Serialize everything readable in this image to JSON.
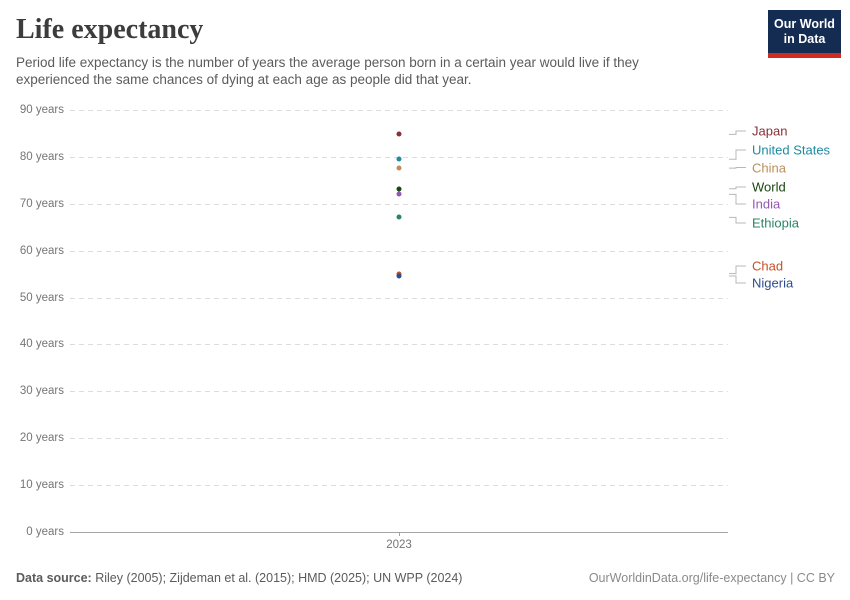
{
  "header": {
    "title": "Life expectancy",
    "subtitle": "Period life expectancy is the number of years the average person born in a certain year would live if they experienced the same chances of dying at each age as people did that year.",
    "logo_line1": "Our World",
    "logo_line2": "in Data",
    "logo_bg_color": "#142B52",
    "logo_stripe_color": "#CF2B21"
  },
  "chart_data": {
    "type": "scatter",
    "title": "Life expectancy",
    "x": [
      2023
    ],
    "xtick_labels": [
      "2023"
    ],
    "yticks": [
      0,
      10,
      20,
      30,
      40,
      50,
      60,
      70,
      80,
      90
    ],
    "ytick_labels": [
      "0 years",
      "10 years",
      "20 years",
      "30 years",
      "40 years",
      "50 years",
      "60 years",
      "70 years",
      "80 years",
      "90 years"
    ],
    "ylim": [
      0,
      90
    ],
    "grid": "horizontal-dashed",
    "legend_position": "right",
    "series": [
      {
        "name": "Japan",
        "value": 84.8,
        "color": "#883039"
      },
      {
        "name": "United States",
        "value": 79.5,
        "color": "#1E8BA1"
      },
      {
        "name": "China",
        "value": 77.6,
        "color": "#BC8E5A"
      },
      {
        "name": "World",
        "value": 73.2,
        "color": "#18470F"
      },
      {
        "name": "India",
        "value": 72.0,
        "color": "#9558B2"
      },
      {
        "name": "Ethiopia",
        "value": 67.1,
        "color": "#2C8465"
      },
      {
        "name": "Chad",
        "value": 55.1,
        "color": "#C4522B"
      },
      {
        "name": "Nigeria",
        "value": 54.6,
        "color": "#2D4E8C"
      }
    ]
  },
  "footer": {
    "source_label": "Data source:",
    "source_text": " Riley (2005); Zijdeman et al. (2015); HMD (2025); UN WPP (2024)",
    "license_text": "OurWorldinData.org/life-expectancy | CC BY"
  }
}
